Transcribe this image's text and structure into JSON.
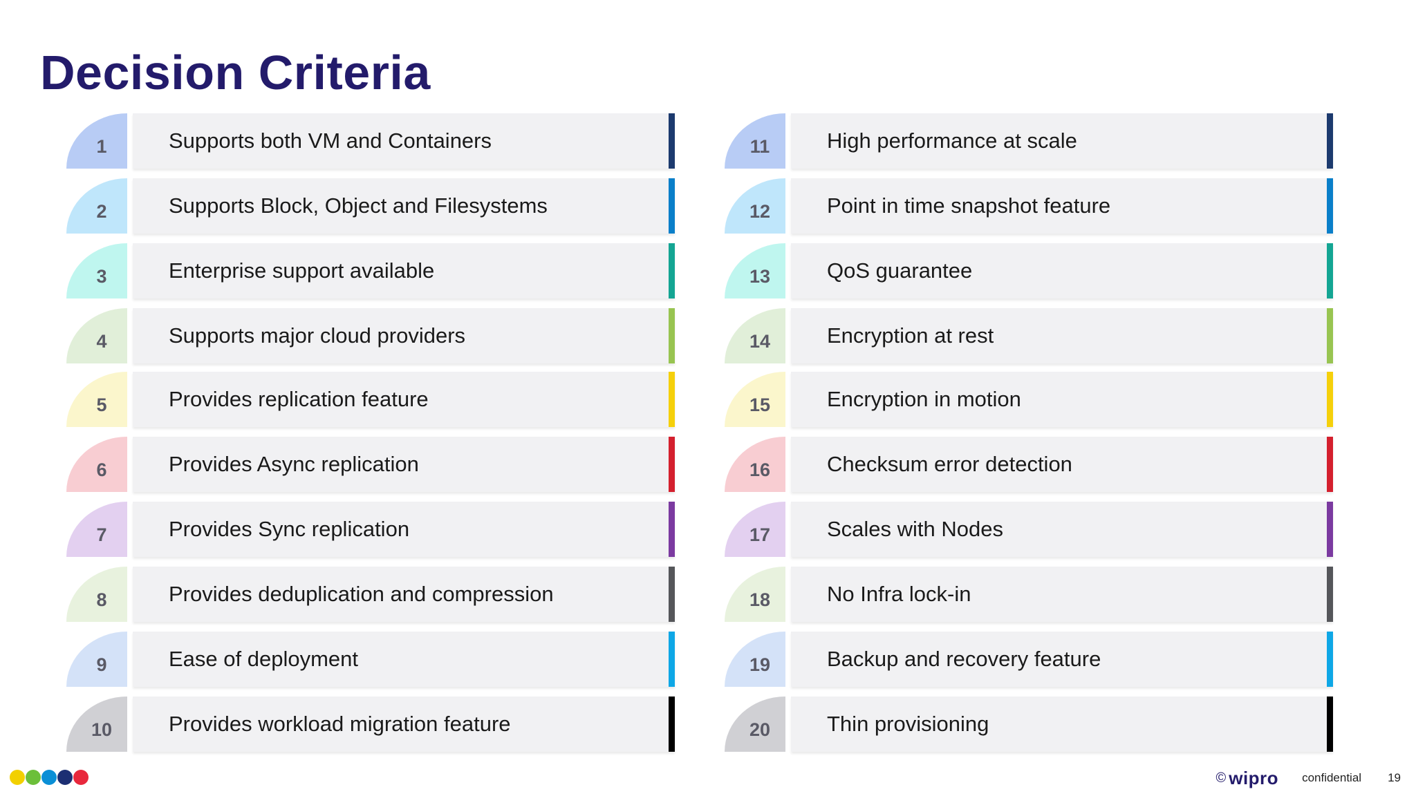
{
  "title": "Decision Criteria",
  "colors": {
    "title": "#231b6b",
    "bar": "#f1f1f3",
    "tiers": [
      {
        "badge": "#b8ccf5",
        "accent": "#1c3a6e"
      },
      {
        "badge": "#bfe6fb",
        "accent": "#0a7fc9"
      },
      {
        "badge": "#bff6ef",
        "accent": "#14a593"
      },
      {
        "badge": "#e1efd9",
        "accent": "#98c451"
      },
      {
        "badge": "#fbf6cc",
        "accent": "#f5d00b"
      },
      {
        "badge": "#f8cdd2",
        "accent": "#d4202e"
      },
      {
        "badge": "#e3d0f0",
        "accent": "#7b3aa0"
      },
      {
        "badge": "#e8f2de",
        "accent": "#55565a"
      },
      {
        "badge": "#d4e2f8",
        "accent": "#0ea7e6"
      },
      {
        "badge": "#d0d0d4",
        "accent": "#000000"
      }
    ]
  },
  "left": [
    {
      "num": "1",
      "label": "Supports both VM and Containers"
    },
    {
      "num": "2",
      "label": "Supports Block, Object and Filesystems"
    },
    {
      "num": "3",
      "label": "Enterprise support available"
    },
    {
      "num": "4",
      "label": "Supports major cloud providers"
    },
    {
      "num": "5",
      "label": "Provides replication feature"
    },
    {
      "num": "6",
      "label": "Provides Async replication"
    },
    {
      "num": "7",
      "label": "Provides Sync replication"
    },
    {
      "num": "8",
      "label": "Provides deduplication and compression"
    },
    {
      "num": "9",
      "label": "Ease of deployment"
    },
    {
      "num": "10",
      "label": "Provides workload migration feature"
    }
  ],
  "right": [
    {
      "num": "11",
      "label": "High performance at scale"
    },
    {
      "num": "12",
      "label": "Point in time snapshot feature"
    },
    {
      "num": "13",
      "label": "QoS guarantee"
    },
    {
      "num": "14",
      "label": "Encryption at rest"
    },
    {
      "num": "15",
      "label": "Encryption in motion"
    },
    {
      "num": "16",
      "label": "Checksum error detection"
    },
    {
      "num": "17",
      "label": "Scales with Nodes"
    },
    {
      "num": "18",
      "label": "No Infra lock-in"
    },
    {
      "num": "19",
      "label": "Backup and recovery feature"
    },
    {
      "num": "20",
      "label": "Thin provisioning"
    }
  ],
  "footer": {
    "dot_colors": [
      "#f2d000",
      "#6cbf3a",
      "#0a8fd6",
      "#1c2f73",
      "#e8283c"
    ],
    "copyright": "©",
    "brand": "wipro",
    "confidential": "confidential",
    "page": "19"
  }
}
